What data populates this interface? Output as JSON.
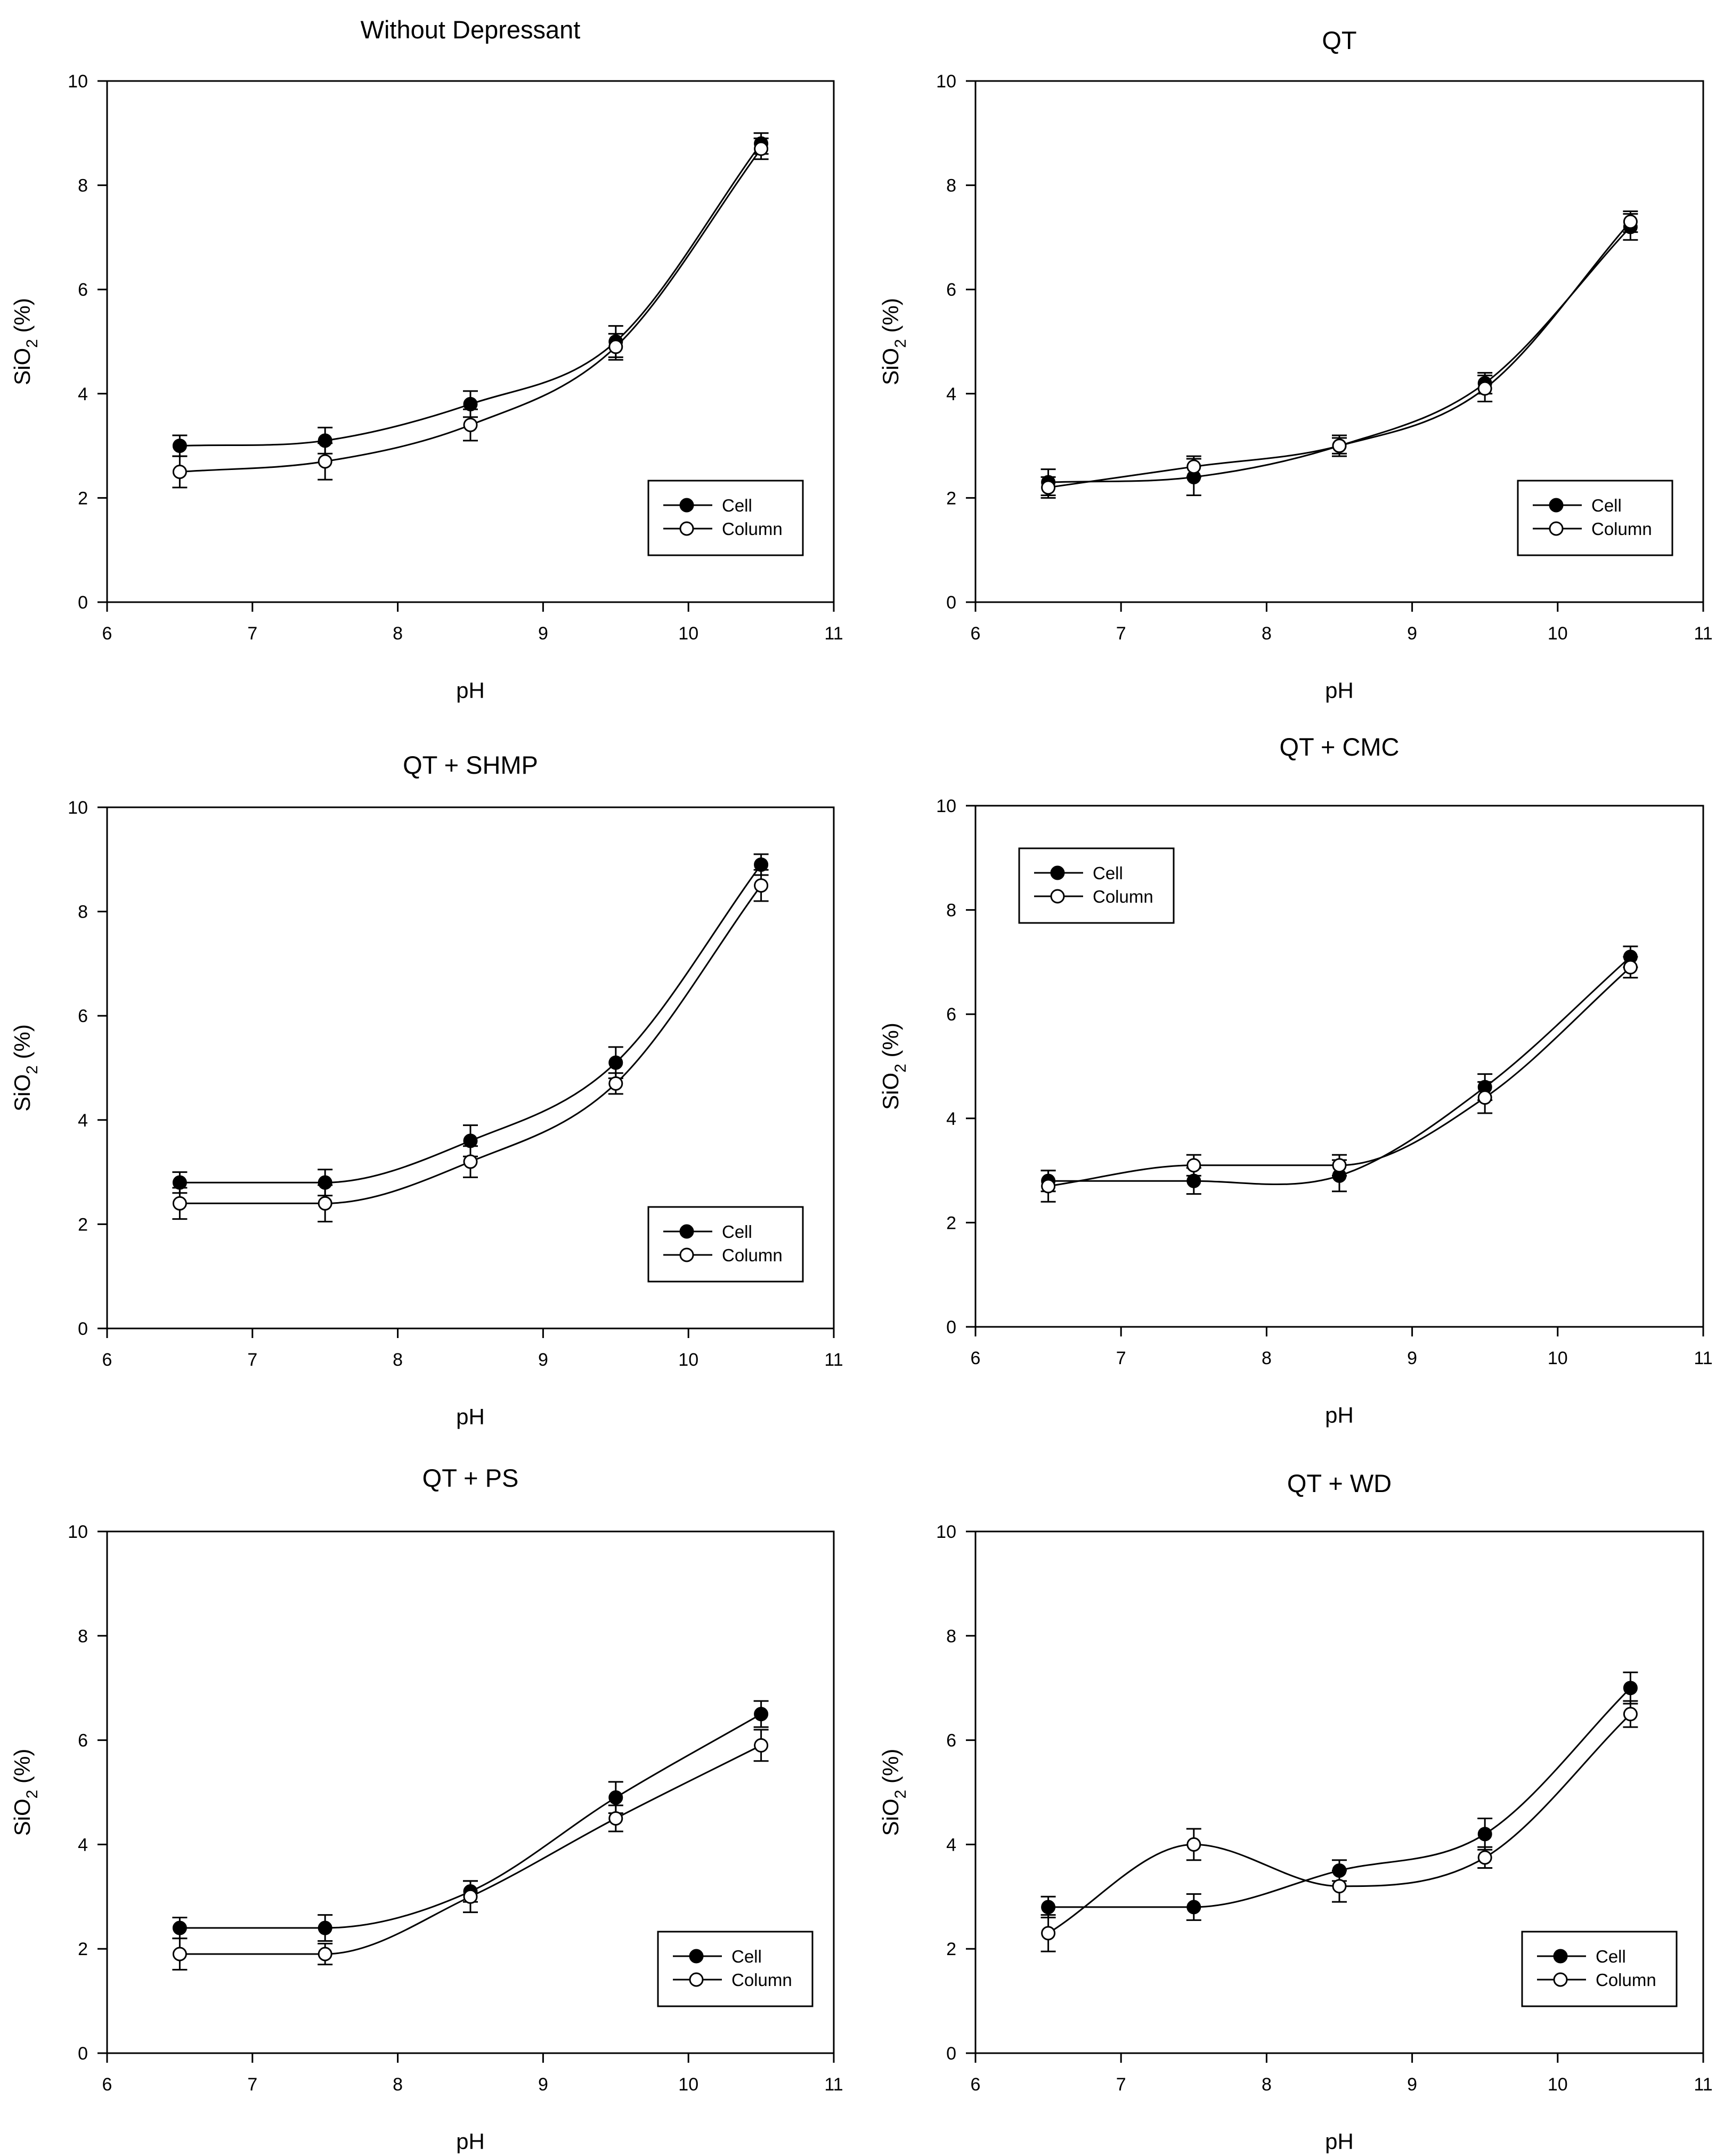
{
  "chart_data": [
    {
      "type": "line",
      "title": "Without Depressant",
      "xlabel": "pH",
      "ylabel_main": "SiO",
      "ylabel_sub": "2",
      "ylabel_tail": " (%)",
      "xlim": [
        6,
        11
      ],
      "ylim": [
        0,
        10
      ],
      "xticks": [
        "6",
        "7",
        "8",
        "9",
        "10",
        "11"
      ],
      "yticks": [
        "0",
        "2",
        "4",
        "6",
        "8",
        "10"
      ],
      "x": [
        6.5,
        7.5,
        8.5,
        9.5,
        10.5
      ],
      "series": [
        {
          "name": "Cell",
          "marker": "filled",
          "values": [
            3.0,
            3.1,
            3.8,
            5.0,
            8.8
          ],
          "errors": [
            0.2,
            0.25,
            0.25,
            0.3,
            0.2
          ]
        },
        {
          "name": "Column",
          "marker": "open",
          "values": [
            2.5,
            2.7,
            3.4,
            4.9,
            8.7
          ],
          "errors": [
            0.3,
            0.35,
            0.3,
            0.25,
            0.2
          ]
        }
      ],
      "legend": "bottom-right"
    },
    {
      "type": "line",
      "title": "QT",
      "xlabel": "pH",
      "ylabel_main": "SiO",
      "ylabel_sub": "2",
      "ylabel_tail": " (%)",
      "xlim": [
        6,
        11
      ],
      "ylim": [
        0,
        10
      ],
      "xticks": [
        "6",
        "7",
        "8",
        "9",
        "10",
        "11"
      ],
      "yticks": [
        "0",
        "2",
        "4",
        "6",
        "8",
        "10"
      ],
      "x": [
        6.5,
        7.5,
        8.5,
        9.5,
        10.5
      ],
      "series": [
        {
          "name": "Cell",
          "marker": "filled",
          "values": [
            2.3,
            2.4,
            3.0,
            4.2,
            7.2
          ],
          "errors": [
            0.25,
            0.35,
            0.2,
            0.2,
            0.25
          ]
        },
        {
          "name": "Column",
          "marker": "open",
          "values": [
            2.2,
            2.6,
            3.0,
            4.1,
            7.3
          ],
          "errors": [
            0.2,
            0.2,
            0.15,
            0.25,
            0.2
          ]
        }
      ],
      "legend": "bottom-right"
    },
    {
      "type": "line",
      "title": "QT + SHMP",
      "xlabel": "pH",
      "ylabel_main": "SiO",
      "ylabel_sub": "2",
      "ylabel_tail": " (%)",
      "xlim": [
        6,
        11
      ],
      "ylim": [
        0,
        10
      ],
      "xticks": [
        "6",
        "7",
        "8",
        "9",
        "10",
        "11"
      ],
      "yticks": [
        "0",
        "2",
        "4",
        "6",
        "8",
        "10"
      ],
      "x": [
        6.5,
        7.5,
        8.5,
        9.5,
        10.5
      ],
      "series": [
        {
          "name": "Cell",
          "marker": "filled",
          "values": [
            2.8,
            2.8,
            3.6,
            5.1,
            8.9
          ],
          "errors": [
            0.2,
            0.25,
            0.3,
            0.3,
            0.2
          ]
        },
        {
          "name": "Column",
          "marker": "open",
          "values": [
            2.4,
            2.4,
            3.2,
            4.7,
            8.5
          ],
          "errors": [
            0.3,
            0.35,
            0.3,
            0.2,
            0.3
          ]
        }
      ],
      "legend": "bottom-right"
    },
    {
      "type": "line",
      "title": "QT + CMC",
      "xlabel": "pH",
      "ylabel_main": "SiO",
      "ylabel_sub": "2",
      "ylabel_tail": " (%)",
      "xlim": [
        6,
        11
      ],
      "ylim": [
        0,
        10
      ],
      "xticks": [
        "6",
        "7",
        "8",
        "9",
        "10",
        "11"
      ],
      "yticks": [
        "0",
        "2",
        "4",
        "6",
        "8",
        "10"
      ],
      "x": [
        6.5,
        7.5,
        8.5,
        9.5,
        10.5
      ],
      "series": [
        {
          "name": "Cell",
          "marker": "filled",
          "values": [
            2.8,
            2.8,
            2.9,
            4.6,
            7.1
          ],
          "errors": [
            0.2,
            0.25,
            0.3,
            0.25,
            0.2
          ]
        },
        {
          "name": "Column",
          "marker": "open",
          "values": [
            2.7,
            3.1,
            3.1,
            4.4,
            6.9
          ],
          "errors": [
            0.3,
            0.2,
            0.2,
            0.3,
            0.2
          ]
        }
      ],
      "legend": "top-left"
    },
    {
      "type": "line",
      "title": "QT + PS",
      "xlabel": "pH",
      "ylabel_main": "SiO",
      "ylabel_sub": "2",
      "ylabel_tail": " (%)",
      "xlim": [
        6,
        11
      ],
      "ylim": [
        0,
        10
      ],
      "xticks": [
        "6",
        "7",
        "8",
        "9",
        "10",
        "11"
      ],
      "yticks": [
        "0",
        "2",
        "4",
        "6",
        "8",
        "10"
      ],
      "x": [
        6.5,
        7.5,
        8.5,
        9.5,
        10.5
      ],
      "series": [
        {
          "name": "Cell",
          "marker": "filled",
          "values": [
            2.4,
            2.4,
            3.1,
            4.9,
            6.5
          ],
          "errors": [
            0.2,
            0.25,
            0.2,
            0.3,
            0.25
          ]
        },
        {
          "name": "Column",
          "marker": "open",
          "values": [
            1.9,
            1.9,
            3.0,
            4.5,
            5.9
          ],
          "errors": [
            0.3,
            0.2,
            0.3,
            0.25,
            0.3
          ]
        }
      ],
      "legend": "bottom-right"
    },
    {
      "type": "line",
      "title": "QT + WD",
      "xlabel": "pH",
      "ylabel_main": "SiO",
      "ylabel_sub": "2",
      "ylabel_tail": " (%)",
      "xlim": [
        6,
        11
      ],
      "ylim": [
        0,
        10
      ],
      "xticks": [
        "6",
        "7",
        "8",
        "9",
        "10",
        "11"
      ],
      "yticks": [
        "0",
        "2",
        "4",
        "6",
        "8",
        "10"
      ],
      "x": [
        6.5,
        7.5,
        8.5,
        9.5,
        10.5
      ],
      "series": [
        {
          "name": "Cell",
          "marker": "filled",
          "values": [
            2.8,
            2.8,
            3.5,
            4.2,
            7.0
          ],
          "errors": [
            0.2,
            0.25,
            0.2,
            0.3,
            0.3
          ]
        },
        {
          "name": "Column",
          "marker": "open",
          "values": [
            2.3,
            4.0,
            3.2,
            3.75,
            6.5
          ],
          "errors": [
            0.35,
            0.3,
            0.3,
            0.2,
            0.25
          ]
        }
      ],
      "legend": "bottom-right"
    }
  ]
}
